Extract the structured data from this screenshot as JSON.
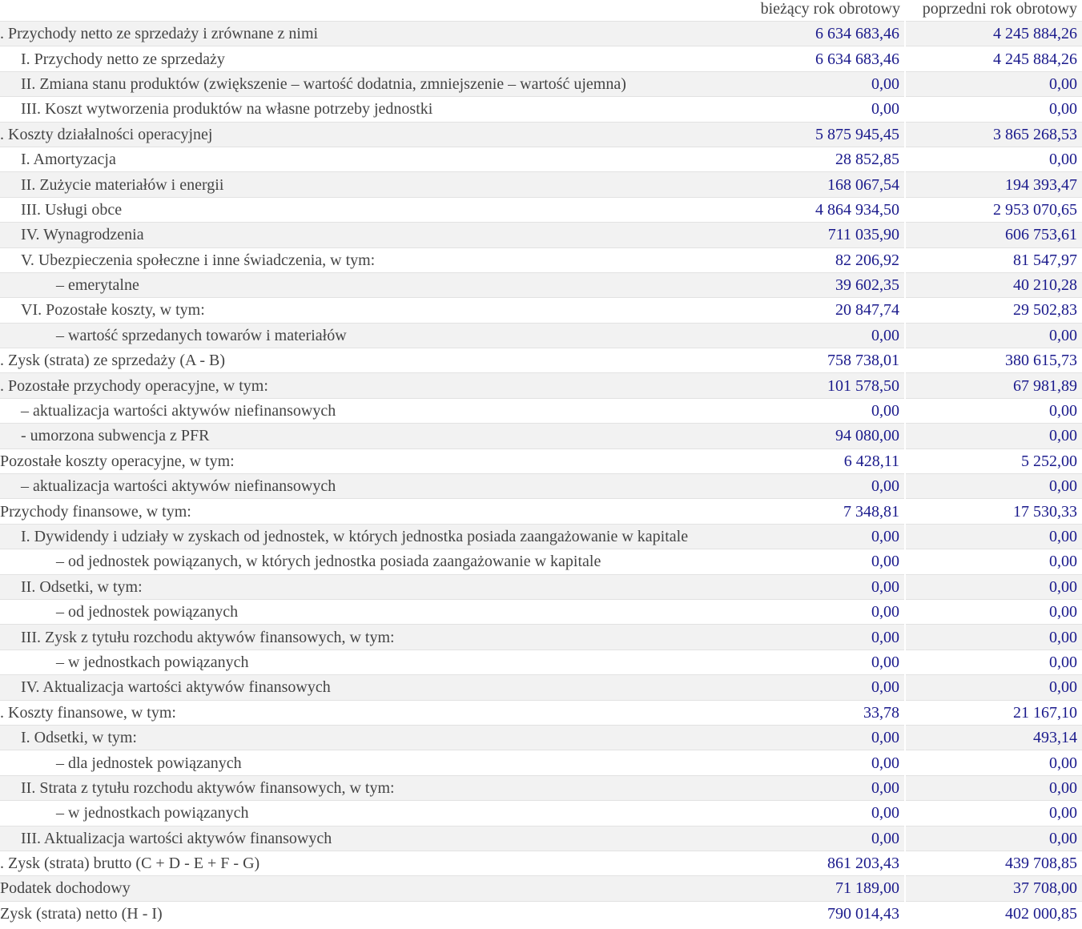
{
  "header": {
    "current_year": "bieżący rok obrotowy",
    "previous_year": "poprzedni rok obrotowy"
  },
  "colors": {
    "values": "#1a1a8c",
    "text": "#444444",
    "stripe": "#f2f2f2"
  },
  "rows": [
    {
      "label": ". Przychody netto ze sprzedaży i zrównane z nimi",
      "level": 0,
      "current": "6 634 683,46",
      "previous": "4 245 884,26"
    },
    {
      "label": "I. Przychody netto ze sprzedaży",
      "level": 1,
      "current": "6 634 683,46",
      "previous": "4 245 884,26"
    },
    {
      "label": "II. Zmiana stanu produktów (zwiększenie – wartość dodatnia, zmniejszenie – wartość ujemna)",
      "level": 1,
      "current": "0,00",
      "previous": "0,00"
    },
    {
      "label": "III. Koszt wytworzenia produktów na własne potrzeby jednostki",
      "level": 1,
      "current": "0,00",
      "previous": "0,00"
    },
    {
      "label": ". Koszty działalności operacyjnej",
      "level": 0,
      "current": "5 875 945,45",
      "previous": "3 865 268,53"
    },
    {
      "label": "I. Amortyzacja",
      "level": 1,
      "current": "28 852,85",
      "previous": "0,00"
    },
    {
      "label": "II. Zużycie materiałów i energii",
      "level": 1,
      "current": "168 067,54",
      "previous": "194 393,47"
    },
    {
      "label": "III. Usługi obce",
      "level": 1,
      "current": "4 864 934,50",
      "previous": "2 953 070,65"
    },
    {
      "label": "IV. Wynagrodzenia",
      "level": 1,
      "current": "711 035,90",
      "previous": "606 753,61"
    },
    {
      "label": "V. Ubezpieczenia społeczne i inne świadczenia, w tym:",
      "level": 1,
      "current": "82 206,92",
      "previous": "81 547,97"
    },
    {
      "label": "– emerytalne",
      "level": 2,
      "current": "39 602,35",
      "previous": "40 210,28"
    },
    {
      "label": "VI. Pozostałe koszty, w tym:",
      "level": 1,
      "current": "20 847,74",
      "previous": "29 502,83"
    },
    {
      "label": "– wartość sprzedanych towarów i materiałów",
      "level": 2,
      "current": "0,00",
      "previous": "0,00"
    },
    {
      "label": ". Zysk (strata) ze sprzedaży (A - B)",
      "level": 0,
      "current": "758 738,01",
      "previous": "380 615,73"
    },
    {
      "label": ". Pozostałe przychody operacyjne, w tym:",
      "level": 0,
      "current": "101 578,50",
      "previous": "67 981,89"
    },
    {
      "label": "– aktualizacja wartości aktywów niefinansowych",
      "level": 1,
      "current": "0,00",
      "previous": "0,00"
    },
    {
      "label": "- umorzona subwencja z PFR",
      "level": 1,
      "current": "94 080,00",
      "previous": "0,00"
    },
    {
      "label": " Pozostałe koszty operacyjne, w tym:",
      "level": 0,
      "current": "6 428,11",
      "previous": "5 252,00"
    },
    {
      "label": "– aktualizacja wartości aktywów niefinansowych",
      "level": 1,
      "current": "0,00",
      "previous": "0,00"
    },
    {
      "label": "Przychody finansowe, w tym:",
      "level": 0,
      "current": "7 348,81",
      "previous": "17 530,33"
    },
    {
      "label": "I. Dywidendy i udziały w zyskach od jednostek, w których jednostka posiada zaangażowanie w kapitale",
      "level": 1,
      "current": "0,00",
      "previous": "0,00"
    },
    {
      "label": "– od jednostek powiązanych, w których jednostka posiada zaangażowanie w kapitale",
      "level": 2,
      "current": "0,00",
      "previous": "0,00"
    },
    {
      "label": "II. Odsetki, w tym:",
      "level": 1,
      "current": "0,00",
      "previous": "0,00"
    },
    {
      "label": "– od jednostek powiązanych",
      "level": 2,
      "current": "0,00",
      "previous": "0,00"
    },
    {
      "label": "III. Zysk z tytułu rozchodu aktywów finansowych, w tym:",
      "level": 1,
      "current": "0,00",
      "previous": "0,00"
    },
    {
      "label": "– w jednostkach powiązanych",
      "level": 2,
      "current": "0,00",
      "previous": "0,00"
    },
    {
      "label": "IV. Aktualizacja wartości aktywów finansowych",
      "level": 1,
      "current": "0,00",
      "previous": "0,00"
    },
    {
      "label": ". Koszty finansowe, w tym:",
      "level": 0,
      "current": "33,78",
      "previous": "21 167,10"
    },
    {
      "label": "I. Odsetki, w tym:",
      "level": 1,
      "current": "0,00",
      "previous": "493,14"
    },
    {
      "label": "– dla jednostek powiązanych",
      "level": 2,
      "current": "0,00",
      "previous": "0,00"
    },
    {
      "label": "II. Strata z tytułu rozchodu aktywów finansowych, w tym:",
      "level": 1,
      "current": "0,00",
      "previous": "0,00"
    },
    {
      "label": "– w jednostkach powiązanych",
      "level": 2,
      "current": "0,00",
      "previous": "0,00"
    },
    {
      "label": "III. Aktualizacja wartości aktywów finansowych",
      "level": 1,
      "current": "0,00",
      "previous": "0,00"
    },
    {
      "label": ". Zysk (strata) brutto (C + D - E + F - G)",
      "level": 0,
      "current": "861 203,43",
      "previous": "439 708,85"
    },
    {
      "label": "Podatek dochodowy",
      "level": 0,
      "current": "71 189,00",
      "previous": "37 708,00"
    },
    {
      "label": " Zysk (strata) netto (H - I)",
      "level": 0,
      "current": "790 014,43",
      "previous": "402 000,85"
    }
  ]
}
